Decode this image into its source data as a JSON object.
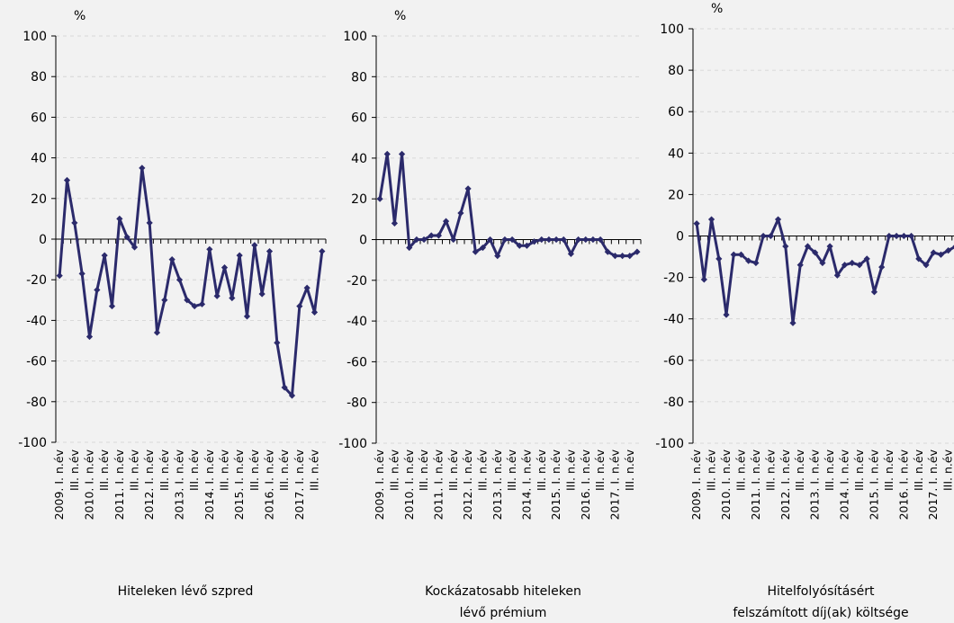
{
  "chart_data": [
    {
      "type": "line",
      "title": [
        "Hiteleken lévő szpred"
      ],
      "y_label": "%",
      "categories": [
        "2009. I. n.év",
        null,
        "III. n.év",
        null,
        "2010. I. n.év",
        null,
        "III. n.év",
        null,
        "2011. I. n.év",
        null,
        "III. n.év",
        null,
        "2012. I. n.év",
        null,
        "III. n.év",
        null,
        "2013. I. n.év",
        null,
        "III. n.év",
        null,
        "2014. I. n.év",
        null,
        "III. n.év",
        null,
        "2015. I. n.év",
        null,
        "III. n.év",
        null,
        "2016. I. n.év",
        null,
        "III. n.év",
        null,
        "2017. I. n.év",
        null,
        "III. n.év",
        null
      ],
      "values": [
        -18,
        29,
        8,
        -17,
        -48,
        -25,
        -8,
        -33,
        10,
        1,
        -4,
        35,
        8,
        -46,
        -30,
        -10,
        -20,
        -30,
        -33,
        -32,
        -5,
        -28,
        -14,
        -29,
        -8,
        -38,
        -3,
        -27,
        -6,
        -51,
        -73,
        -77,
        -33,
        -24,
        -36,
        -6
      ],
      "color": "#2b2a6b",
      "ylim": [
        -100,
        100
      ],
      "yticks": [
        -100,
        -80,
        -60,
        -40,
        -20,
        0,
        20,
        40,
        60,
        80,
        100
      ],
      "grid": true
    },
    {
      "type": "line",
      "title": [
        "Kockázatosabb hiteleken",
        "lévő prémium"
      ],
      "y_label": "%",
      "categories": [
        "2009. I. n.év",
        null,
        "III. n.év",
        null,
        "2010. I. n.év",
        null,
        "III. n.év",
        null,
        "2011. I. n.év",
        null,
        "III. n.év",
        null,
        "2012. I. n.év",
        null,
        "III. n.év",
        null,
        "2013. I. n.év",
        null,
        "III. n.év",
        null,
        "2014. I. n.év",
        null,
        "III. n.év",
        null,
        "2015. I. n.év",
        null,
        "III. n.év",
        null,
        "2016. I. n.év",
        null,
        "III. n.év",
        null,
        "2017. I. n.év",
        null,
        "III. n.év",
        null
      ],
      "values": [
        20,
        42,
        8,
        42,
        -4,
        0,
        0,
        2,
        2,
        9,
        0,
        13,
        25,
        -6,
        -4,
        0,
        -8,
        0,
        0,
        -3,
        -3,
        -1,
        0,
        0,
        0,
        0,
        -7,
        0,
        0,
        0,
        0,
        -6,
        -8,
        -8,
        -8,
        -6
      ],
      "color": "#2b2a6b",
      "ylim": [
        -100,
        100
      ],
      "yticks": [
        -100,
        -80,
        -60,
        -40,
        -20,
        0,
        20,
        40,
        60,
        80,
        100
      ],
      "grid": true
    },
    {
      "type": "line",
      "title": [
        "Hitelfolyósításért",
        "felszámított díj(ak) költsége"
      ],
      "y_label": "%",
      "categories": [
        "2009. I. n.év",
        null,
        "III. n.év",
        null,
        "2010. I. n.év",
        null,
        "III. n.év",
        null,
        "2011. I. n.év",
        null,
        "III. n.év",
        null,
        "2012. I. n.év",
        null,
        "III. n.év",
        null,
        "2013. I. n.év",
        null,
        "III. n.év",
        null,
        "2014. I. n.év",
        null,
        "III. n.év",
        null,
        "2015. I. n.év",
        null,
        "III. n.év",
        null,
        "2016. I. n.év",
        null,
        "III. n.év",
        null,
        "2017. I. n.év",
        null,
        "III. n.év",
        null
      ],
      "values": [
        6,
        -21,
        8,
        -11,
        -38,
        -9,
        -9,
        -12,
        -13,
        0,
        0,
        8,
        -5,
        -42,
        -14,
        -5,
        -8,
        -13,
        -5,
        -19,
        -14,
        -13,
        -14,
        -11,
        -27,
        -15,
        0,
        0,
        0,
        0,
        -11,
        -14,
        -8,
        -9,
        -7,
        -5
      ],
      "color": "#2b2a6b",
      "ylim": [
        -100,
        100
      ],
      "yticks": [
        -100,
        -80,
        -60,
        -40,
        -20,
        0,
        20,
        40,
        60,
        80,
        100
      ],
      "grid": true
    }
  ]
}
